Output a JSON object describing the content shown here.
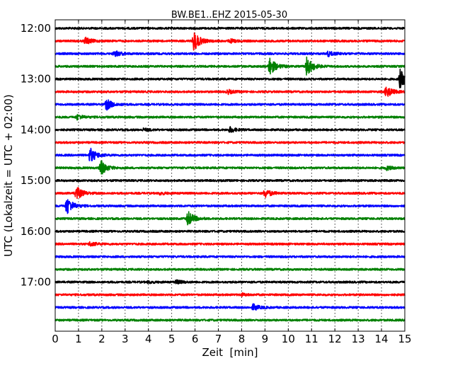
{
  "chart_data": {
    "type": "line",
    "title": "BW.BE1..EHZ 2015-05-30",
    "xlabel": "Zeit  [min]",
    "ylabel": "UTC (Lokalzeit = UTC + 02:00)",
    "xlim": [
      0,
      15
    ],
    "x_ticks": [
      "0",
      "1",
      "2",
      "3",
      "4",
      "5",
      "6",
      "7",
      "8",
      "9",
      "10",
      "11",
      "12",
      "13",
      "14",
      "15"
    ],
    "y_tick_labels": [
      "12:00",
      "13:00",
      "14:00",
      "15:00",
      "16:00",
      "17:00"
    ],
    "grid": "vertical dotted lines at each minute",
    "colors": [
      "#000000",
      "#ff0000",
      "#0000ff",
      "#008000"
    ],
    "traces": [
      {
        "start": "12:00",
        "events": []
      },
      {
        "start": "12:15",
        "events": [
          {
            "t": 1.3,
            "amp": 0.35
          },
          {
            "t": 5.95,
            "amp": 1.0
          },
          {
            "t": 7.5,
            "amp": 0.18
          }
        ]
      },
      {
        "start": "12:30",
        "events": [
          {
            "t": 2.55,
            "amp": 0.3
          },
          {
            "t": 11.7,
            "amp": 0.25
          }
        ]
      },
      {
        "start": "12:45",
        "events": [
          {
            "t": 9.2,
            "amp": 0.9
          },
          {
            "t": 10.8,
            "amp": 1.0
          }
        ]
      },
      {
        "start": "13:00",
        "events": [
          {
            "t": 14.8,
            "amp": 0.95
          }
        ]
      },
      {
        "start": "13:15",
        "events": [
          {
            "t": 7.4,
            "amp": 0.2
          },
          {
            "t": 14.2,
            "amp": 0.6
          }
        ]
      },
      {
        "start": "13:30",
        "events": [
          {
            "t": 2.2,
            "amp": 0.55
          }
        ]
      },
      {
        "start": "13:45",
        "events": [
          {
            "t": 0.95,
            "amp": 0.25
          }
        ]
      },
      {
        "start": "14:00",
        "events": [
          {
            "t": 7.5,
            "amp": 0.25
          },
          {
            "t": 3.8,
            "amp": 0.12
          }
        ]
      },
      {
        "start": "14:15",
        "events": []
      },
      {
        "start": "14:30",
        "events": [
          {
            "t": 1.5,
            "amp": 0.75
          }
        ]
      },
      {
        "start": "14:45",
        "events": [
          {
            "t": 1.95,
            "amp": 0.75
          },
          {
            "t": 14.2,
            "amp": 0.2
          }
        ]
      },
      {
        "start": "15:00",
        "events": []
      },
      {
        "start": "15:15",
        "events": [
          {
            "t": 0.9,
            "amp": 0.7
          },
          {
            "t": 9.0,
            "amp": 0.45
          },
          {
            "t": 4.5,
            "amp": 0.12
          }
        ]
      },
      {
        "start": "15:30",
        "events": [
          {
            "t": 0.5,
            "amp": 0.9
          }
        ]
      },
      {
        "start": "15:45",
        "events": [
          {
            "t": 5.7,
            "amp": 0.75
          }
        ]
      },
      {
        "start": "16:00",
        "events": []
      },
      {
        "start": "16:15",
        "events": [
          {
            "t": 1.5,
            "amp": 0.22
          }
        ]
      },
      {
        "start": "16:30",
        "events": []
      },
      {
        "start": "16:45",
        "events": []
      },
      {
        "start": "17:00",
        "events": [
          {
            "t": 5.2,
            "amp": 0.18
          },
          {
            "t": 4.0,
            "amp": 0.1
          }
        ]
      },
      {
        "start": "17:15",
        "events": [
          {
            "t": 8.0,
            "amp": 0.12
          }
        ]
      },
      {
        "start": "17:30",
        "events": [
          {
            "t": 8.5,
            "amp": 0.3
          }
        ]
      },
      {
        "start": "17:45",
        "events": []
      }
    ]
  }
}
